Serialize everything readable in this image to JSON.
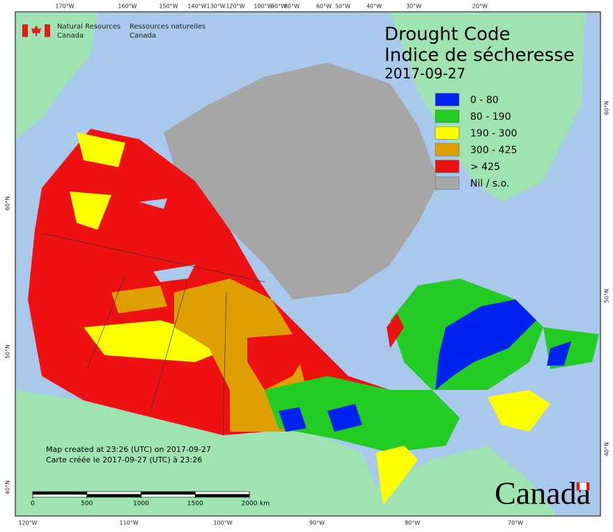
{
  "header": {
    "org_en_1": "Natural Resources",
    "org_en_2": "Canada",
    "org_fr_1": "Ressources naturelles",
    "org_fr_2": "Canada"
  },
  "title": {
    "line1": "Drought Code",
    "line2": "Indice de sécheresse",
    "date": "2017-09-27"
  },
  "legend": [
    {
      "label": "0 - 80",
      "color": "#0022ee"
    },
    {
      "label": "80 - 190",
      "color": "#22cc22"
    },
    {
      "label": "190 - 300",
      "color": "#ffff00"
    },
    {
      "label": "300 - 425",
      "color": "#dda000"
    },
    {
      "label": "> 425",
      "color": "#ee1111"
    },
    {
      "label": "Nil / s.o.",
      "color": "#a6a6a6"
    }
  ],
  "credits": {
    "line1": "Map created at 23:26 (UTC) on 2017-09-27",
    "line2": "Carte créée le 2017-09-27 (UTC) à 23:26"
  },
  "scale": {
    "ticks": [
      0,
      500,
      1000,
      1500,
      2000
    ],
    "unit": "km"
  },
  "graticule": {
    "top": [
      "170°W",
      "160°W",
      "150°W",
      "140°W",
      "130°W",
      "120°W",
      "100°W",
      "90°W",
      "80°W",
      "60°W",
      "50°W",
      "40°W",
      "30°W",
      "20°W"
    ],
    "bottom": [
      "120°W",
      "110°W",
      "100°W",
      "90°W",
      "80°W",
      "70°W"
    ],
    "left": [
      "60°N",
      "50°N",
      "40°N"
    ],
    "right": [
      "60°N",
      "50°N",
      "40°N"
    ]
  },
  "wordmark": "Canada"
}
